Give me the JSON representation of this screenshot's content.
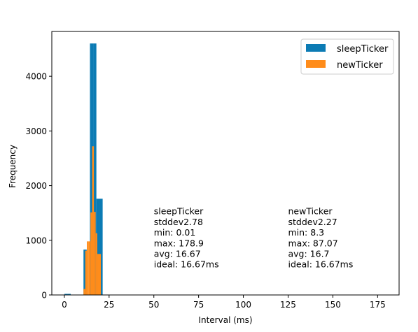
{
  "chart_data": {
    "type": "histogram",
    "title": "",
    "xlabel": "Interval (ms)",
    "ylabel": "Frequency",
    "xlim": [
      -7,
      187
    ],
    "ylim": [
      0,
      4820
    ],
    "xticks": [
      0,
      25,
      50,
      75,
      100,
      125,
      150,
      175
    ],
    "yticks": [
      0,
      1000,
      2000,
      3000,
      4000
    ],
    "grid": false,
    "legend_position": "top-right",
    "series": [
      {
        "name": "sleepTicker",
        "color": "#0c7bb4",
        "bins": [
          {
            "x0": 0.01,
            "x1": 1.79,
            "count": 20
          },
          {
            "x0": 1.79,
            "x1": 3.57,
            "count": 20
          },
          {
            "x0": 10.7,
            "x1": 12.5,
            "count": 830
          },
          {
            "x0": 14.3,
            "x1": 16.1,
            "count": 4600
          },
          {
            "x0": 16.1,
            "x1": 17.9,
            "count": 4600
          },
          {
            "x0": 17.9,
            "x1": 19.6,
            "count": 1760
          },
          {
            "x0": 19.6,
            "x1": 21.4,
            "count": 1760
          }
        ]
      },
      {
        "name": "newTicker",
        "color": "#ff8c1a",
        "bins": [
          {
            "x0": 10.7,
            "x1": 11.7,
            "count": 110
          },
          {
            "x0": 11.7,
            "x1": 12.6,
            "count": 810
          },
          {
            "x0": 12.6,
            "x1": 13.6,
            "count": 980
          },
          {
            "x0": 13.6,
            "x1": 14.6,
            "count": 980
          },
          {
            "x0": 14.6,
            "x1": 15.5,
            "count": 1510
          },
          {
            "x0": 15.5,
            "x1": 16.5,
            "count": 2720
          },
          {
            "x0": 16.5,
            "x1": 17.5,
            "count": 1520
          },
          {
            "x0": 17.5,
            "x1": 18.4,
            "count": 1130
          },
          {
            "x0": 18.4,
            "x1": 19.4,
            "count": 750
          },
          {
            "x0": 19.4,
            "x1": 20.4,
            "count": 750
          }
        ]
      }
    ],
    "annotations": [
      {
        "x": 50,
        "y_top": 1640,
        "lines": [
          "sleepTicker",
          "stddev2.78",
          "min: 0.01",
          "max: 178.9",
          "avg: 16.67",
          "ideal: 16.67ms"
        ]
      },
      {
        "x": 125,
        "y_top": 1640,
        "lines": [
          "newTicker",
          "stddev2.27",
          "min: 8.3",
          "max: 87.07",
          "avg: 16.7",
          "ideal: 16.67ms"
        ]
      }
    ]
  }
}
